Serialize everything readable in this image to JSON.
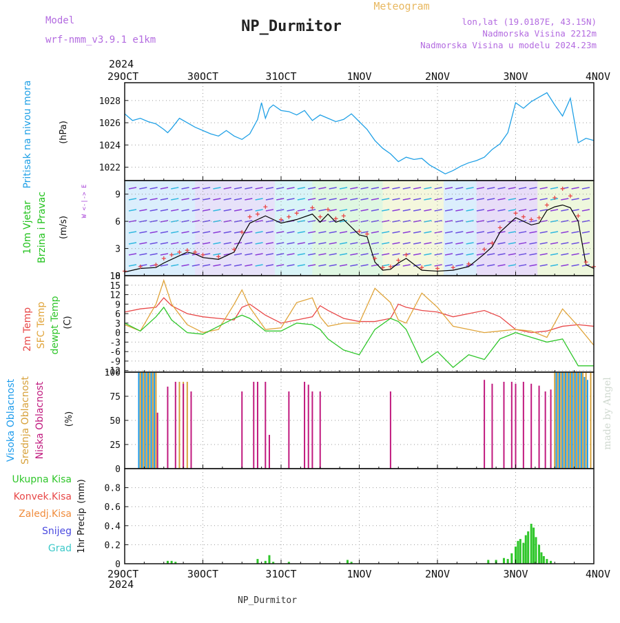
{
  "header": {
    "model_label": "Model",
    "model_name": "wrf-nmm_v3.9.1 e1km",
    "station_title": "NP_Durmitor",
    "product": "Meteogram",
    "lonlat": "lon,lat (19.0187E, 43.15N)",
    "altitude": "Nadmorska Visina 2212m",
    "altitude_model": "Nadmorska Visina u modelu 2024.23m"
  },
  "footer": {
    "station": "NP_Durmitor",
    "credit": "made by Angel"
  },
  "colors": {
    "pressure": "#1fa0e6",
    "wind_label": "#21c21c",
    "wind_dir": "#a53cd6",
    "temp2m": "#e84848",
    "sfc": "#e0a43a",
    "dewpt": "#2fc62a",
    "cloud_high": "#1e9cec",
    "cloud_mid": "#d7a13b",
    "cloud_low": "#c0197e",
    "precip_total": "#2fc62a",
    "precip_conv": "#e84848",
    "precip_frz": "#f08c3c",
    "precip_snow": "#4a4ae0",
    "precip_graupel": "#3cc9c9",
    "header_purple": "#b36be0"
  },
  "chart_data": [
    {
      "type": "line",
      "panel": "pressure",
      "xlabels_top_year": "2024",
      "xlabels": [
        "29OCT",
        "30OCT",
        "31OCT",
        "1NOV",
        "2NOV",
        "3NOV",
        "4NOV"
      ],
      "ylabel": "Pritisak na nivou mora",
      "unit": "(hPa)",
      "ylim": [
        1020.8,
        1029.6
      ],
      "yticks": [
        1022,
        1024,
        1026,
        1028
      ],
      "grid": true,
      "series": [
        {
          "color": "#1fa0e6",
          "x": [
            0,
            0.1,
            0.2,
            0.3,
            0.4,
            0.5,
            0.55,
            0.6,
            0.7,
            0.8,
            0.9,
            1.0,
            1.1,
            1.2,
            1.3,
            1.4,
            1.5,
            1.6,
            1.7,
            1.75,
            1.8,
            1.85,
            1.9,
            2.0,
            2.1,
            2.2,
            2.3,
            2.4,
            2.5,
            2.6,
            2.7,
            2.8,
            2.9,
            3.0,
            3.1,
            3.2,
            3.3,
            3.4,
            3.5,
            3.6,
            3.7,
            3.8,
            3.9,
            4.0,
            4.1,
            4.2,
            4.3,
            4.4,
            4.5,
            4.6,
            4.7,
            4.8,
            4.9,
            5.0,
            5.1,
            5.2,
            5.3,
            5.4,
            5.5,
            5.6,
            5.7,
            5.8,
            5.9,
            6.0
          ],
          "y": [
            1026.8,
            1026.2,
            1026.4,
            1026.1,
            1025.9,
            1025.4,
            1025.1,
            1025.5,
            1026.4,
            1026.0,
            1025.6,
            1025.3,
            1025.0,
            1024.8,
            1025.3,
            1024.8,
            1024.5,
            1025.0,
            1026.3,
            1027.8,
            1026.4,
            1027.3,
            1027.6,
            1027.1,
            1027.0,
            1026.7,
            1027.1,
            1026.2,
            1026.7,
            1026.4,
            1026.1,
            1026.3,
            1026.8,
            1026.1,
            1025.4,
            1024.4,
            1023.7,
            1023.2,
            1022.5,
            1022.9,
            1022.7,
            1022.8,
            1022.2,
            1021.8,
            1021.4,
            1021.7,
            1022.1,
            1022.4,
            1022.6,
            1022.9,
            1023.6,
            1024.1,
            1025.1,
            1027.8,
            1027.3,
            1027.9,
            1028.3,
            1028.7,
            1027.6,
            1026.6,
            1028.2,
            1024.2,
            1024.6,
            1024.4
          ]
        }
      ]
    },
    {
      "type": "scatter",
      "panel": "wind",
      "ylabel": "10m Vjetar",
      "ylabel2": "Brzina i Pravac",
      "unit": "(m/s)",
      "direction_key": "W <-|-> E",
      "ylim": [
        0,
        10.5
      ],
      "yticks": [
        0,
        3,
        6,
        9
      ],
      "grid": true,
      "series": [
        {
          "name": "",
          "color": "#000000",
          "x": [
            0,
            0.2,
            0.4,
            0.5,
            0.6,
            0.7,
            0.8,
            0.9,
            1.0,
            1.2,
            1.4,
            1.5,
            1.6,
            1.7,
            1.8,
            2.0,
            2.1,
            2.2,
            2.4,
            2.5,
            2.6,
            2.7,
            2.8,
            3.0,
            3.1,
            3.2,
            3.3,
            3.4,
            3.5,
            3.6,
            3.8,
            4.0,
            4.2,
            4.4,
            4.6,
            4.7,
            4.8,
            5.0,
            5.1,
            5.2,
            5.3,
            5.4,
            5.5,
            5.6,
            5.7,
            5.8,
            5.9,
            6.0
          ],
          "y": [
            0.4,
            0.8,
            0.9,
            1.4,
            1.8,
            2.2,
            2.6,
            2.4,
            2.0,
            1.8,
            2.6,
            4.3,
            5.8,
            6.2,
            6.6,
            5.8,
            6.0,
            6.2,
            6.8,
            5.9,
            6.8,
            5.9,
            6.2,
            4.5,
            4.3,
            1.5,
            0.6,
            0.7,
            1.4,
            1.9,
            0.6,
            0.5,
            0.6,
            1.0,
            2.4,
            3.2,
            4.8,
            6.4,
            6.0,
            5.6,
            5.8,
            7.2,
            7.6,
            7.8,
            7.5,
            6.0,
            1.2,
            0.8
          ]
        },
        {
          "name": "",
          "color": "#e84848",
          "x": [
            0,
            0.2,
            0.4,
            0.5,
            0.6,
            0.7,
            0.8,
            0.9,
            1.0,
            1.2,
            1.4,
            1.5,
            1.6,
            1.7,
            1.8,
            2.0,
            2.1,
            2.2,
            2.4,
            2.5,
            2.6,
            2.7,
            2.8,
            3.0,
            3.1,
            3.2,
            3.3,
            3.4,
            3.5,
            3.6,
            3.8,
            4.0,
            4.2,
            4.4,
            4.6,
            4.7,
            4.8,
            5.0,
            5.1,
            5.2,
            5.3,
            5.4,
            5.5,
            5.6,
            5.7,
            5.8,
            5.9,
            6.0
          ],
          "y": [
            0.5,
            1.0,
            1.2,
            1.9,
            2.3,
            2.6,
            2.8,
            2.6,
            2.3,
            2.1,
            2.9,
            4.8,
            6.5,
            6.8,
            7.6,
            6.2,
            6.5,
            6.9,
            7.5,
            6.5,
            7.3,
            6.3,
            6.6,
            4.9,
            4.6,
            1.9,
            0.9,
            1.0,
            1.7,
            2.3,
            0.9,
            0.8,
            0.9,
            1.3,
            2.9,
            3.6,
            5.3,
            6.9,
            6.5,
            6.2,
            6.4,
            7.8,
            8.6,
            9.6,
            8.8,
            6.6,
            1.5,
            1.0
          ]
        }
      ]
    },
    {
      "type": "line",
      "panel": "temperature",
      "ylabel": "2m Temp",
      "ylabel2": "SFC Temp",
      "ylabel3": "dewpt Temp",
      "unit": "(C)",
      "ylim": [
        -12.5,
        18
      ],
      "yticks": [
        -12,
        -9,
        -6,
        -3,
        0,
        3,
        6,
        9,
        12,
        15,
        18
      ],
      "grid": true,
      "series": [
        {
          "color": "#e84848",
          "x": [
            0,
            0.2,
            0.4,
            0.5,
            0.6,
            0.8,
            1.0,
            1.2,
            1.4,
            1.5,
            1.6,
            1.8,
            2.0,
            2.2,
            2.4,
            2.5,
            2.6,
            2.8,
            3.0,
            3.2,
            3.4,
            3.5,
            3.6,
            3.8,
            4.0,
            4.2,
            4.4,
            4.6,
            4.8,
            5.0,
            5.2,
            5.4,
            5.6,
            5.8,
            6.0
          ],
          "y": [
            6.5,
            7.5,
            8.0,
            11.0,
            8.5,
            6.0,
            5.0,
            4.5,
            4.0,
            8.0,
            9.0,
            5.5,
            3.0,
            4.0,
            5.0,
            8.5,
            7.0,
            4.5,
            3.5,
            3.5,
            4.5,
            9.0,
            8.0,
            7.0,
            6.5,
            5.0,
            6.0,
            7.0,
            5.0,
            1.0,
            0.0,
            0.5,
            2.0,
            2.5,
            2.0
          ]
        },
        {
          "color": "#e0a43a",
          "x": [
            0,
            0.2,
            0.4,
            0.5,
            0.6,
            0.8,
            1.0,
            1.2,
            1.4,
            1.5,
            1.6,
            1.8,
            2.0,
            2.2,
            2.4,
            2.5,
            2.6,
            2.8,
            3.0,
            3.2,
            3.4,
            3.5,
            3.6,
            3.8,
            4.0,
            4.2,
            4.4,
            4.6,
            4.8,
            5.0,
            5.2,
            5.4,
            5.6,
            5.8,
            6.0
          ],
          "y": [
            2.5,
            0.5,
            9.0,
            16.5,
            9.0,
            2.5,
            0.0,
            1.0,
            9.0,
            13.5,
            8.0,
            1.0,
            1.5,
            9.5,
            11.0,
            5.0,
            2.0,
            3.0,
            3.0,
            14.0,
            9.5,
            4.0,
            3.0,
            12.5,
            8.0,
            2.0,
            1.0,
            0.0,
            0.5,
            1.0,
            0.5,
            -1.5,
            7.5,
            2.0,
            -4.0
          ]
        },
        {
          "color": "#2fc62a",
          "x": [
            0,
            0.2,
            0.4,
            0.5,
            0.6,
            0.8,
            1.0,
            1.2,
            1.4,
            1.5,
            1.6,
            1.8,
            2.0,
            2.2,
            2.4,
            2.5,
            2.6,
            2.8,
            3.0,
            3.2,
            3.4,
            3.5,
            3.6,
            3.8,
            4.0,
            4.2,
            4.4,
            4.6,
            4.8,
            5.0,
            5.2,
            5.4,
            5.6,
            5.8,
            6.0
          ],
          "y": [
            3.0,
            0.5,
            5.0,
            8.0,
            4.0,
            0.0,
            -0.5,
            2.0,
            4.5,
            5.5,
            4.5,
            0.5,
            0.5,
            3.0,
            2.5,
            1.0,
            -2.0,
            -5.5,
            -7.0,
            1.0,
            4.5,
            3.5,
            1.0,
            -9.5,
            -6.0,
            -11.0,
            -7.0,
            -8.5,
            -2.0,
            0.0,
            -1.5,
            -3.0,
            -2.0,
            -10.5,
            -10.5
          ]
        }
      ]
    },
    {
      "type": "bar",
      "panel": "clouds",
      "ylabel": "Visoka Oblacnost",
      "ylabel2": "Srednja Oblacnost",
      "ylabel3": "Niska Oblacnost",
      "unit": "(%)",
      "ylim": [
        0,
        100
      ],
      "yticks": [
        0,
        25,
        50,
        75,
        100
      ],
      "grid": true,
      "series": [
        {
          "color": "#1e9cec",
          "x": [
            0.18,
            0.22,
            0.26,
            0.3,
            0.34,
            0.38,
            5.52,
            5.56,
            5.6,
            5.64,
            5.68,
            5.72,
            5.76,
            5.8,
            5.84,
            5.88,
            5.92
          ],
          "y": [
            100,
            100,
            100,
            100,
            100,
            100,
            100,
            100,
            100,
            100,
            100,
            100,
            100,
            100,
            100,
            95,
            92
          ]
        },
        {
          "color": "#d7a13b",
          "x": [
            0.2,
            0.24,
            0.28,
            0.32,
            0.36,
            0.4,
            0.7,
            0.75,
            0.8,
            5.5,
            5.54,
            5.58,
            5.62,
            5.66,
            5.7,
            5.74,
            5.78,
            5.82,
            5.86,
            5.9,
            5.96
          ],
          "y": [
            100,
            100,
            100,
            100,
            100,
            100,
            90,
            90,
            90,
            100,
            100,
            100,
            100,
            100,
            100,
            100,
            100,
            100,
            100,
            100,
            100
          ]
        },
        {
          "color": "#c0197e",
          "x": [
            0.42,
            0.55,
            0.65,
            0.75,
            0.85,
            1.5,
            1.65,
            1.7,
            1.8,
            1.85,
            2.1,
            2.3,
            2.35,
            2.4,
            2.5,
            3.4,
            4.6,
            4.7,
            4.85,
            4.95,
            5.0,
            5.1,
            5.2,
            5.3,
            5.38,
            5.45
          ],
          "y": [
            58,
            85,
            90,
            88,
            80,
            80,
            90,
            90,
            90,
            35,
            80,
            90,
            87,
            80,
            80,
            80,
            92,
            88,
            90,
            90,
            88,
            90,
            88,
            86,
            80,
            82
          ]
        }
      ]
    },
    {
      "type": "bar",
      "panel": "precipitation",
      "ylabel": "1hr Precip",
      "unit": "(mm)",
      "legend": [
        "Ukupna Kisa",
        "Konvek.Kisa",
        "Zaledj.Kisa",
        "Snijeg",
        "Grad"
      ],
      "ylim": [
        0,
        1.0
      ],
      "yticks": [
        0,
        0.2,
        0.4,
        0.6,
        0.8
      ],
      "grid": true,
      "series": [
        {
          "name": "Ukupna Kisa",
          "color": "#2fc62a",
          "x": [
            0.55,
            0.6,
            0.65,
            1.7,
            1.8,
            1.85,
            1.9,
            2.1,
            2.85,
            2.9,
            4.65,
            4.75,
            4.85,
            4.9,
            4.95,
            5.0,
            5.03,
            5.06,
            5.1,
            5.13,
            5.16,
            5.2,
            5.23,
            5.26,
            5.3,
            5.33,
            5.36,
            5.4,
            5.45
          ],
          "y": [
            0.03,
            0.03,
            0.02,
            0.05,
            0.03,
            0.09,
            0.02,
            0.02,
            0.04,
            0.02,
            0.04,
            0.04,
            0.06,
            0.05,
            0.11,
            0.18,
            0.24,
            0.26,
            0.22,
            0.3,
            0.34,
            0.42,
            0.38,
            0.28,
            0.2,
            0.12,
            0.08,
            0.05,
            0.03
          ]
        }
      ]
    }
  ]
}
